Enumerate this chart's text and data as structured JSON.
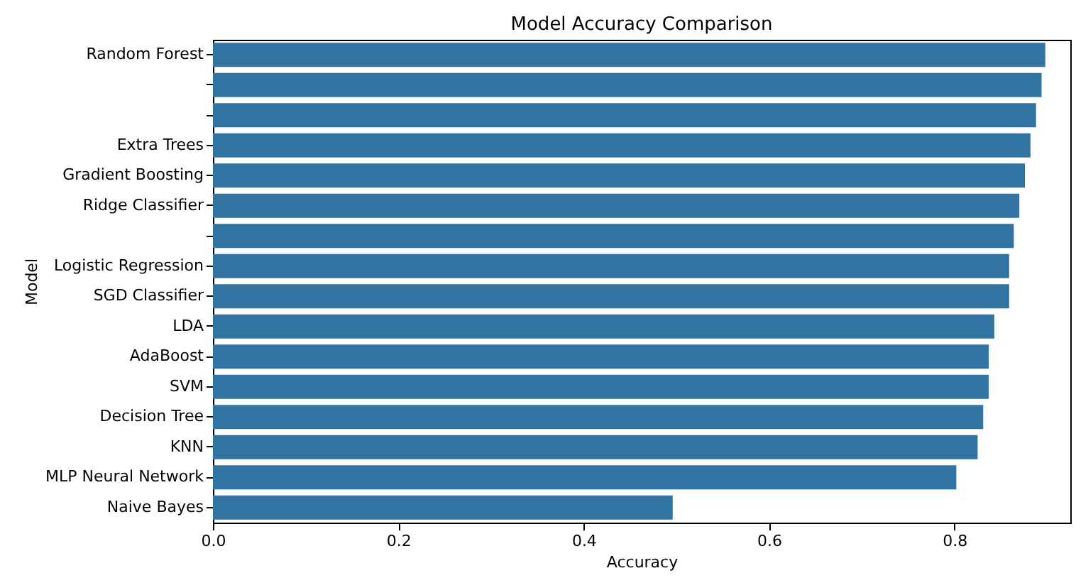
{
  "chart_data": {
    "type": "bar",
    "orientation": "horizontal",
    "title": "Model Accuracy Comparison",
    "xlabel": "Accuracy",
    "ylabel": "Model",
    "categories": [
      "Random Forest",
      null,
      null,
      "Extra Trees",
      "Gradient Boosting",
      "Ridge Classifier",
      null,
      "Logistic Regression",
      "SGD Classifier",
      "LDA",
      "AdaBoost",
      "SVM",
      "Decision Tree",
      "KNN",
      "MLP Neural Network",
      "Naive Bayes"
    ],
    "values": [
      0.898,
      0.894,
      0.888,
      0.882,
      0.876,
      0.87,
      0.864,
      0.859,
      0.859,
      0.843,
      0.837,
      0.837,
      0.831,
      0.825,
      0.802,
      0.496
    ],
    "color": "#3274a1",
    "xlim": [
      0,
      0.925
    ],
    "xticks": [
      {
        "value": 0,
        "label": "0.0"
      },
      0.2,
      0.4,
      0.6,
      0.8
    ],
    "grid": false
  }
}
